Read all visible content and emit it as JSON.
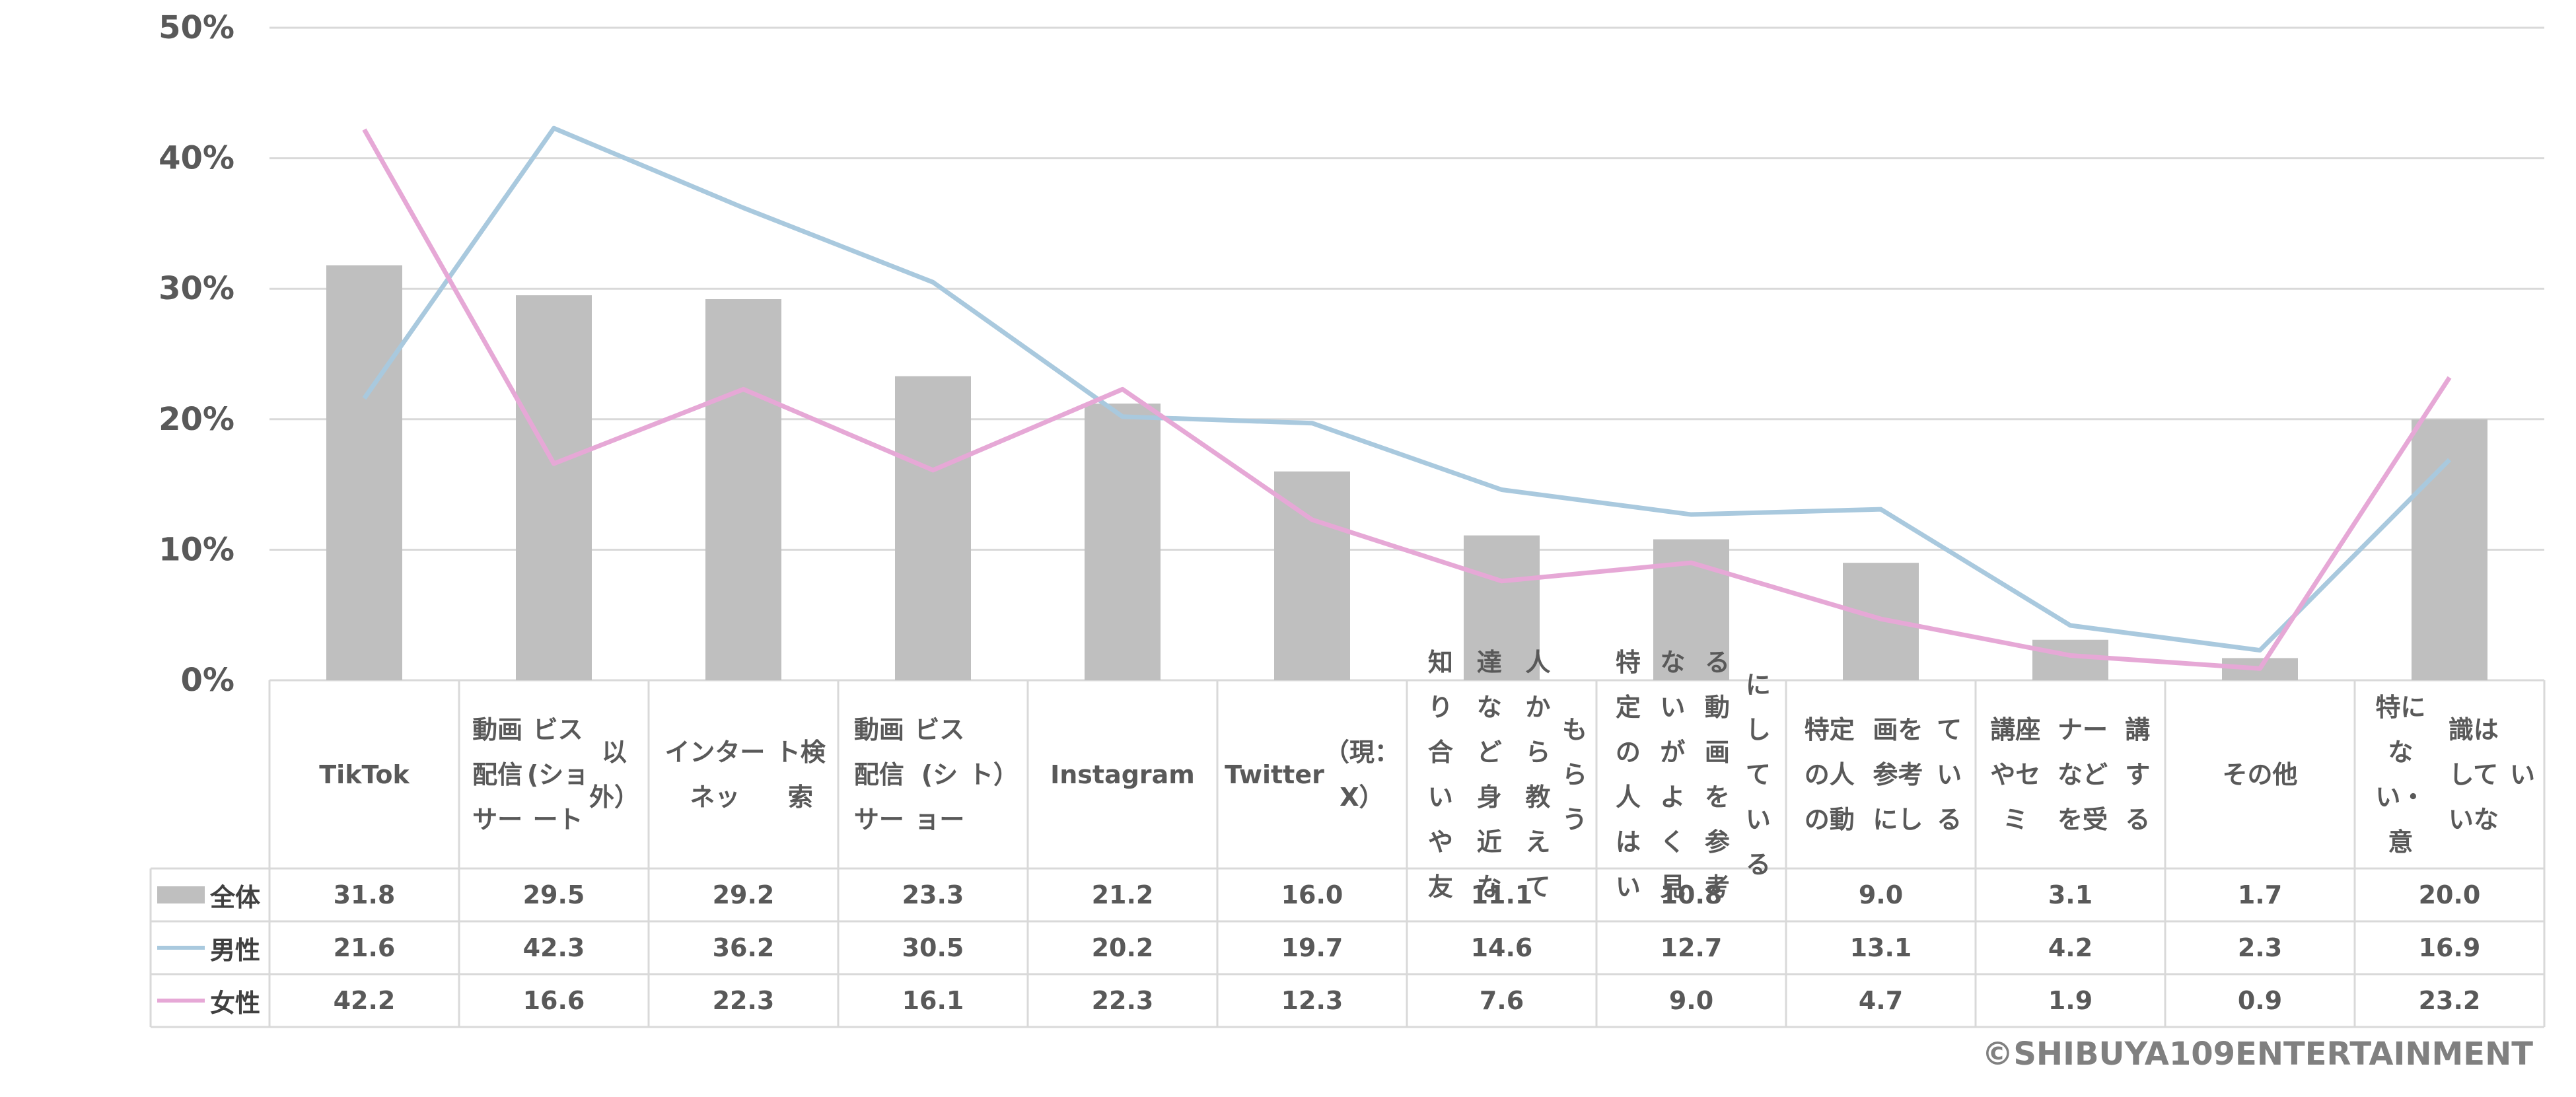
{
  "chart_data": {
    "type": "bar+line",
    "categories": [
      [
        "TikTok"
      ],
      [
        "動画配信サー",
        "ビス(ショート",
        "以外）"
      ],
      [
        "インターネッ",
        "ト検索"
      ],
      [
        "動画配信サー",
        "ビス(ショー",
        "ト）"
      ],
      [
        "Instagram"
      ],
      [
        "Twitter",
        "（現：X）"
      ],
      [
        "知り合いや友",
        "達など身近な",
        "人から教えて",
        "もらう"
      ],
      [
        "特定の人はい",
        "ないがよく見",
        "る動画を参考",
        "にしている"
      ],
      [
        "特定の人の動",
        "画を参考にし",
        "ている"
      ],
      [
        "講座やセミ",
        "ナーなどを受",
        "講する"
      ],
      [
        "その他"
      ],
      [
        "特にない・意",
        "識はしていな",
        "い"
      ]
    ],
    "series": [
      {
        "name": "全体",
        "kind": "bar",
        "color": "#bfbfbf",
        "values": [
          31.8,
          29.5,
          29.2,
          23.3,
          21.2,
          16.0,
          11.1,
          10.8,
          9.0,
          3.1,
          1.7,
          20.0
        ],
        "labels": [
          "31.8",
          "29.5",
          "29.2",
          "23.3",
          "21.2",
          "16.0",
          "11.1",
          "10.8",
          "9.0",
          "3.1",
          "1.7",
          "20.0"
        ]
      },
      {
        "name": "男性",
        "kind": "line",
        "color": "#a9c9de",
        "values": [
          21.6,
          42.3,
          36.2,
          30.5,
          20.2,
          19.7,
          14.6,
          12.7,
          13.1,
          4.2,
          2.3,
          16.9
        ],
        "labels": [
          "21.6",
          "42.3",
          "36.2",
          "30.5",
          "20.2",
          "19.7",
          "14.6",
          "12.7",
          "13.1",
          "4.2",
          "2.3",
          "16.9"
        ]
      },
      {
        "name": "女性",
        "kind": "line",
        "color": "#e6a8d6",
        "values": [
          42.2,
          16.6,
          22.3,
          16.1,
          22.3,
          12.3,
          7.6,
          9.0,
          4.7,
          1.9,
          0.9,
          23.2
        ],
        "labels": [
          "42.2",
          "16.6",
          "22.3",
          "16.1",
          "22.3",
          "12.3",
          "7.6",
          "9.0",
          "4.7",
          "1.9",
          "0.9",
          "23.2"
        ]
      }
    ],
    "yticks": [
      "0%",
      "10%",
      "20%",
      "30%",
      "40%",
      "50%"
    ],
    "ylim": [
      0,
      50
    ],
    "grid": true,
    "legend": "data-table-left"
  },
  "copyright": "©SHIBUYA109ENTERTAINMENT"
}
